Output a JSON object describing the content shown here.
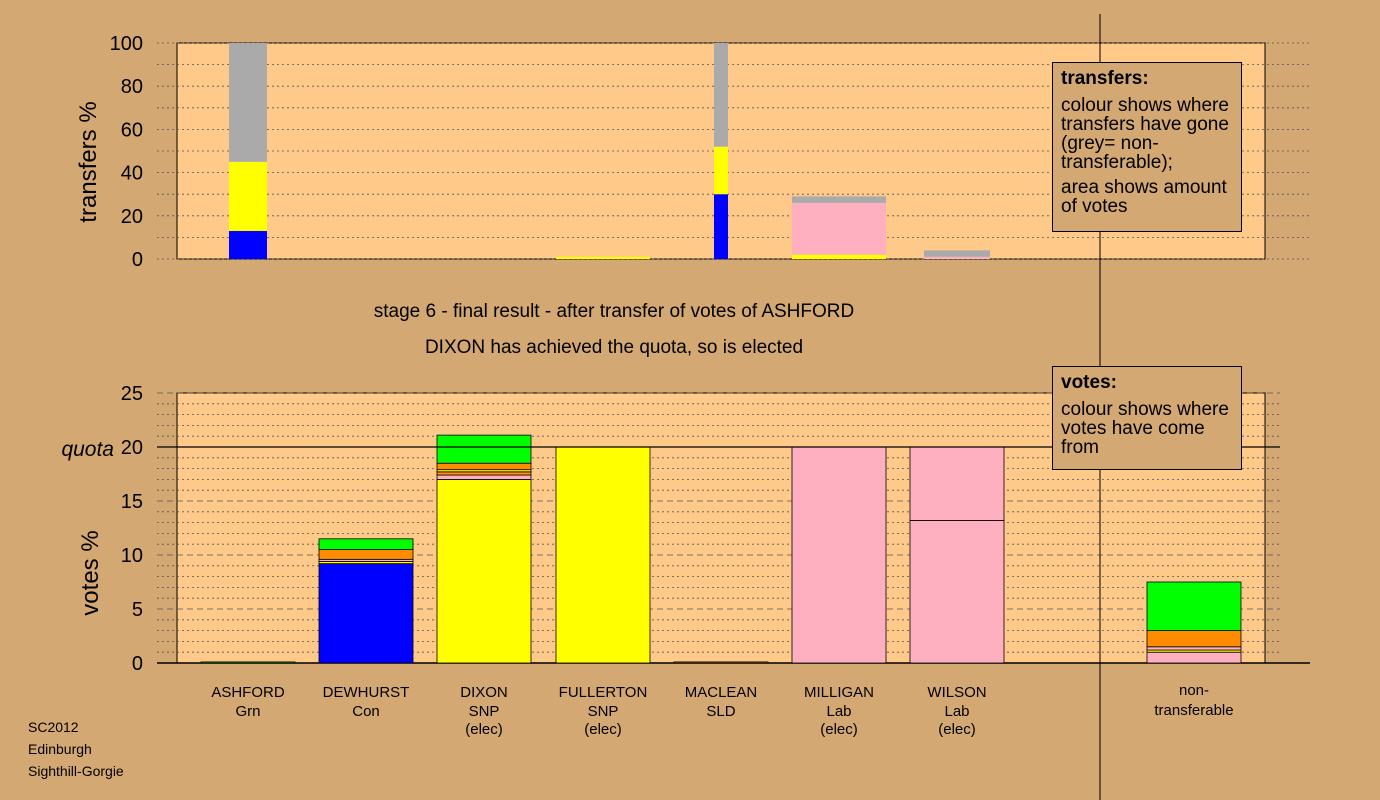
{
  "chart_data": [
    {
      "type": "bar",
      "stacked": true,
      "ylabel": "transfers %",
      "ylim": [
        0,
        100
      ],
      "yticks": [
        0,
        20,
        40,
        60,
        80,
        100
      ],
      "grid": "dotted",
      "categories": [
        "ASHFORD Grn",
        "DEWHURST Con",
        "DIXON SNP (elec)",
        "FULLERTON SNP (elec)",
        "MACLEAN SLD",
        "MILLIGAN Lab (elec)",
        "WILSON Lab (elec)"
      ],
      "columns": [
        {
          "category": "ASHFORD Grn",
          "width": "narrow",
          "segments": [
            {
              "color": "#0000ff",
              "value": 13
            },
            {
              "color": "#ffff00",
              "value": 32
            },
            {
              "color": "#aaaaaa",
              "value": 55
            }
          ]
        },
        {
          "category": "DEWHURST Con",
          "width": "narrow",
          "segments": []
        },
        {
          "category": "DIXON SNP (elec)",
          "width": "narrow",
          "segments": []
        },
        {
          "category": "FULLERTON SNP (elec)",
          "width": "full",
          "segments": [
            {
              "color": "#ffff00",
              "value": 1
            }
          ]
        },
        {
          "category": "MACLEAN SLD",
          "width": "thin",
          "segments": [
            {
              "color": "#0000ff",
              "value": 30
            },
            {
              "color": "#ffff00",
              "value": 22
            },
            {
              "color": "#aaaaaa",
              "value": 48
            }
          ]
        },
        {
          "category": "MILLIGAN Lab (elec)",
          "width": "full",
          "segments": [
            {
              "color": "#ffff00",
              "value": 2
            },
            {
              "color": "#ffb0c0",
              "value": 24
            },
            {
              "color": "#aaaaaa",
              "value": 3
            }
          ]
        },
        {
          "category": "WILSON Lab (elec)",
          "width": "wide",
          "segments": [
            {
              "color": "#ffb0c0",
              "value": 1
            },
            {
              "color": "#aaaaaa",
              "value": 3
            }
          ]
        }
      ]
    },
    {
      "type": "bar",
      "stacked": true,
      "ylabel": "votes %",
      "ylim": [
        0,
        25
      ],
      "yticks": [
        0,
        5,
        10,
        15,
        20,
        25
      ],
      "quota": 20,
      "quota_label": "quota",
      "grid": "dashed",
      "categories": [
        "ASHFORD Grn",
        "DEWHURST Con",
        "DIXON SNP (elec)",
        "FULLERTON SNP (elec)",
        "MACLEAN SLD",
        "MILLIGAN Lab (elec)",
        "WILSON Lab (elec)",
        "non-transferable"
      ],
      "columns": [
        {
          "category": "ASHFORD Grn",
          "segments": [
            {
              "color": "#00ff00",
              "value": 0.1
            }
          ]
        },
        {
          "category": "DEWHURST Con",
          "segments": [
            {
              "color": "#0000ff",
              "value": 9.2
            },
            {
              "color": "#ffff00",
              "value": 0.2
            },
            {
              "color": "#ffb0c0",
              "value": 0.2
            },
            {
              "color": "#ff8c00",
              "value": 0.9
            },
            {
              "color": "#00ff00",
              "value": 1.0
            }
          ]
        },
        {
          "category": "DIXON SNP (elec)",
          "segments": [
            {
              "color": "#ffff00",
              "value": 17.0
            },
            {
              "color": "#ffb0c0",
              "value": 0.4
            },
            {
              "color": "#ff8c00",
              "value": 0.3
            },
            {
              "color": "#ffff00",
              "value": 0.2
            },
            {
              "color": "#ff8c00",
              "value": 0.6
            },
            {
              "color": "#00ff00",
              "value": 2.6
            }
          ]
        },
        {
          "category": "FULLERTON SNP (elec)",
          "segments": [
            {
              "color": "#ffff00",
              "value": 20.0
            }
          ]
        },
        {
          "category": "MACLEAN SLD",
          "segments": [
            {
              "color": "#ff8c00",
              "value": 0.1
            }
          ]
        },
        {
          "category": "MILLIGAN Lab (elec)",
          "segments": [
            {
              "color": "#ffb0c0",
              "value": 20.0
            }
          ]
        },
        {
          "category": "WILSON Lab (elec)",
          "segments": [
            {
              "color": "#ffb0c0",
              "value": 13.2
            },
            {
              "color": "#ffb0c0",
              "value": 6.8
            }
          ]
        },
        {
          "category": "non-transferable",
          "segments": [
            {
              "color": "#ffb0c0",
              "value": 1.0
            },
            {
              "color": "#ffff00",
              "value": 0.2
            },
            {
              "color": "#ffb0c0",
              "value": 0.3
            },
            {
              "color": "#ff8c00",
              "value": 1.5
            },
            {
              "color": "#00ff00",
              "value": 4.5
            }
          ]
        }
      ]
    }
  ],
  "candidates": [
    {
      "name": "ASHFORD",
      "party": "Grn",
      "status": ""
    },
    {
      "name": "DEWHURST",
      "party": "Con",
      "status": ""
    },
    {
      "name": "DIXON",
      "party": "SNP",
      "status": "(elec)"
    },
    {
      "name": "FULLERTON",
      "party": "SNP",
      "status": "(elec)"
    },
    {
      "name": "MACLEAN",
      "party": "SLD",
      "status": ""
    },
    {
      "name": "MILLIGAN",
      "party": "Lab",
      "status": "(elec)"
    },
    {
      "name": "WILSON",
      "party": "Lab",
      "status": "(elec)"
    }
  ],
  "nontransferable": {
    "line1": "non-",
    "line2": "transferable"
  },
  "status": {
    "line1": "stage 6 - final result - after transfer of votes of ASHFORD",
    "line2": "DIXON has achieved the quota, so is elected"
  },
  "legend_transfers": {
    "title": "transfers:",
    "para1": "colour shows where transfers have gone (grey= non-transferable);",
    "para2": "area shows amount of votes"
  },
  "legend_votes": {
    "title": "votes:",
    "para1": "colour shows where votes have come from"
  },
  "corner": {
    "line1": "SC2012",
    "line2": "Edinburgh",
    "line3": "Sighthill-Gorgie"
  }
}
